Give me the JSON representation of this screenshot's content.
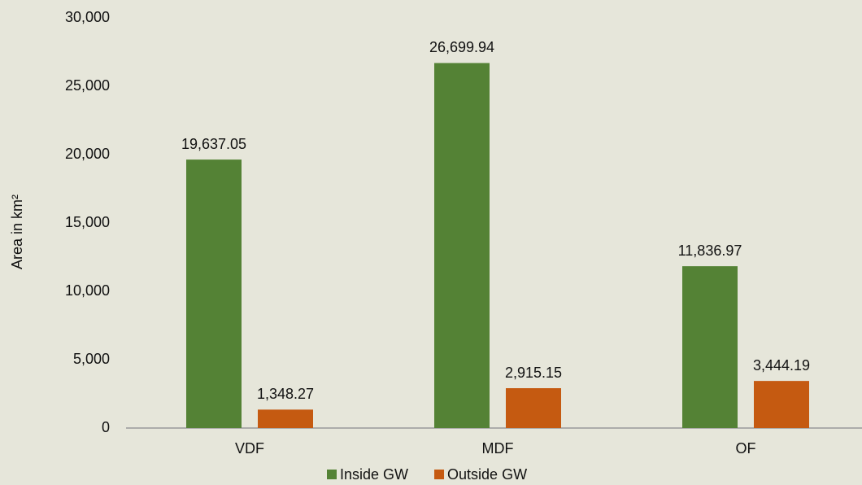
{
  "chart_data": {
    "type": "bar",
    "ylabel": "Area in km²",
    "categories": [
      "VDF",
      "MDF",
      "OF"
    ],
    "series": [
      {
        "name": "Inside GW",
        "color": "#548235",
        "values": [
          19637.05,
          26699.94,
          11836.97
        ],
        "value_labels": [
          "19,637.05",
          "26,699.94",
          "11,836.97"
        ]
      },
      {
        "name": "Outside GW",
        "color": "#c55a11",
        "values": [
          1348.27,
          2915.15,
          3444.19
        ],
        "value_labels": [
          "1,348.27",
          "2,915.15",
          "3,444.19"
        ]
      }
    ],
    "ylim": [
      0,
      30000
    ],
    "yticks": [
      0,
      {
        "value": 5000,
        "label": "5,000"
      },
      {
        "value": 10000,
        "label": "10,000"
      },
      {
        "value": 15000,
        "label": "15,000"
      },
      {
        "value": 20000,
        "label": "20,000"
      },
      {
        "value": 25000,
        "label": "25,000"
      },
      {
        "value": 30000,
        "label": "30,000"
      }
    ],
    "grid": false,
    "legend": "bottom"
  }
}
